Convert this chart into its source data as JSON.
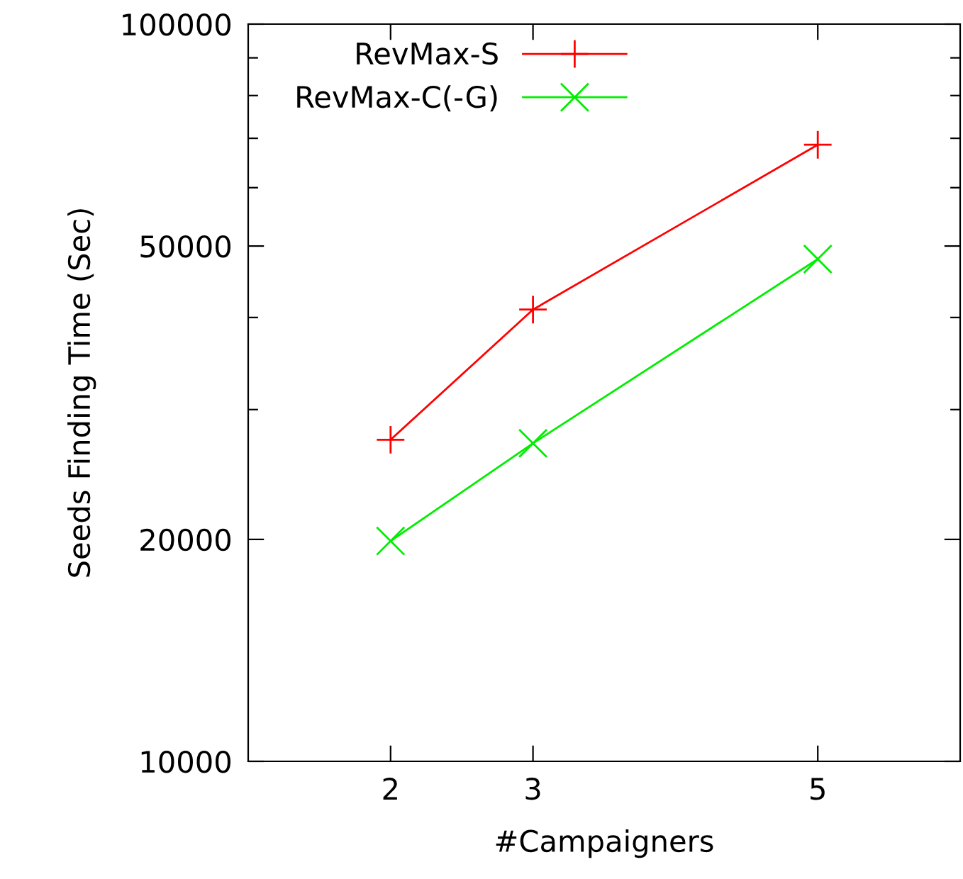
{
  "chart_data": {
    "type": "line",
    "xlabel": "#Campaigners",
    "ylabel": "Seeds Finding Time (Sec)",
    "x": [
      2,
      3,
      5
    ],
    "series": [
      {
        "name": "RevMax-S",
        "color": "#ff0000",
        "values": [
          27300,
          41000,
          68600
        ],
        "marker": "cross"
      },
      {
        "name": "RevMax-C(-G)",
        "color": "#00ee00",
        "values": [
          19900,
          27000,
          48000
        ],
        "marker": "x"
      }
    ],
    "log": "y",
    "xlim": [
      1,
      6
    ],
    "xticks": [
      2,
      3,
      5
    ],
    "ylim": [
      10000,
      100000
    ],
    "yticks": [
      10000,
      20000,
      {
        "value": 30000,
        "label": null
      },
      {
        "value": 40000,
        "label": null
      },
      50000,
      {
        "value": 60000,
        "label": null
      },
      {
        "value": 70000,
        "label": null
      },
      {
        "value": 80000,
        "label": null
      },
      {
        "value": 90000,
        "label": null
      },
      100000
    ],
    "grid": false,
    "legend": "top left",
    "line_style": "solid"
  }
}
